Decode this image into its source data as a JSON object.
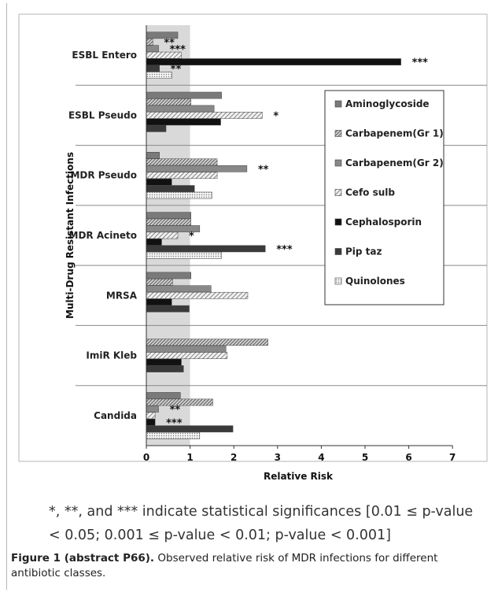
{
  "chart_data": {
    "type": "bar",
    "orientation": "horizontal",
    "xlabel": "Relative Risk",
    "ylabel": "Multi-Drug Resistant Infections",
    "xlim": [
      0,
      7
    ],
    "xticks": [
      "0",
      "1",
      "2",
      "3",
      "4",
      "5",
      "6",
      "7"
    ],
    "reference_band": [
      0,
      1
    ],
    "grid": false,
    "legend_position": "right",
    "categories": [
      "ESBL Entero",
      "ESBL Pseudo",
      "MDR Pseudo",
      "MDR Acineto",
      "MRSA",
      "ImiR Kleb",
      "Candida"
    ],
    "series": [
      {
        "name": "Aminoglycoside",
        "color": "#7a7a7a",
        "pattern": "solid-grey",
        "values": [
          0.72,
          1.72,
          0.3,
          1.02,
          1.02,
          null,
          0.78
        ]
      },
      {
        "name": "Carbapenem(Gr 1)",
        "color": "#6a6a6a",
        "pattern": "diag-dense",
        "values": [
          0.15,
          1.02,
          1.62,
          1.02,
          0.6,
          2.78,
          1.52
        ]
      },
      {
        "name": "Carbapenem(Gr 2)",
        "color": "#888888",
        "pattern": "solid-grey-mid",
        "values": [
          0.28,
          1.55,
          2.3,
          1.22,
          1.48,
          1.82,
          0.28
        ]
      },
      {
        "name": "Cefo sulb",
        "color": "#9a9a9a",
        "pattern": "diag-light",
        "values": [
          0.8,
          2.65,
          1.62,
          0.72,
          2.32,
          1.85,
          0.2
        ]
      },
      {
        "name": "Cephalosporin",
        "color": "#111111",
        "pattern": "solid-black",
        "values": [
          5.82,
          1.7,
          0.58,
          0.35,
          0.58,
          0.8,
          0.2
        ]
      },
      {
        "name": "Pip taz",
        "color": "#3a3a3a",
        "pattern": "solid-dark",
        "values": [
          0.3,
          0.45,
          1.1,
          2.72,
          0.98,
          0.85,
          1.98
        ]
      },
      {
        "name": "Quinolones",
        "color": "#e8e8e8",
        "pattern": "dotted",
        "values": [
          0.58,
          null,
          1.5,
          1.72,
          null,
          null,
          1.22
        ]
      }
    ],
    "significance": [
      {
        "category": "ESBL Entero",
        "series": "Carbapenem(Gr 1)",
        "label": "**"
      },
      {
        "category": "ESBL Entero",
        "series": "Carbapenem(Gr 2)",
        "label": "***"
      },
      {
        "category": "ESBL Entero",
        "series": "Cephalosporin",
        "label": "***"
      },
      {
        "category": "ESBL Entero",
        "series": "Pip taz",
        "label": "**"
      },
      {
        "category": "ESBL Pseudo",
        "series": "Cefo sulb",
        "label": "*"
      },
      {
        "category": "MDR Pseudo",
        "series": "Carbapenem(Gr 2)",
        "label": "**"
      },
      {
        "category": "MDR Acineto",
        "series": "Cefo sulb",
        "label": "*"
      },
      {
        "category": "MDR Acineto",
        "series": "Pip taz",
        "label": "***"
      },
      {
        "category": "Candida",
        "series": "Carbapenem(Gr 2)",
        "label": "**"
      },
      {
        "category": "Candida",
        "series": "Cephalosporin",
        "label": "***"
      }
    ]
  },
  "note": "*, **, and *** indicate statistical significances [0.01 ≤ p-value < 0.05; 0.001 ≤ p-value < 0.01; p-value < 0.001]",
  "caption": {
    "lead": "Figure 1 (abstract P66).",
    "text": " Observed relative risk of MDR infections for different antibiotic classes."
  }
}
